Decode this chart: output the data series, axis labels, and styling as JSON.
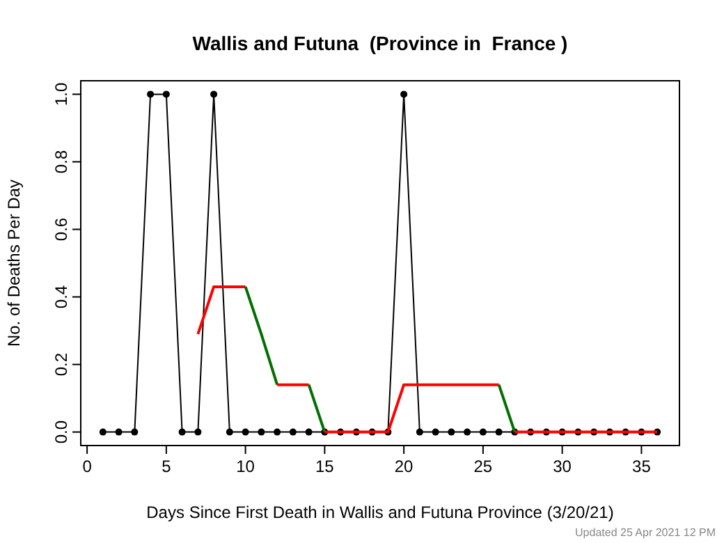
{
  "chart_data": {
    "type": "line",
    "title": "Wallis and Futuna  (Province in  France )",
    "xlabel": "Days Since First Death in Wallis and Futuna Province (3/20/21)",
    "ylabel": "No. of Deaths Per Day",
    "x": [
      1,
      2,
      3,
      4,
      5,
      6,
      7,
      8,
      9,
      10,
      11,
      12,
      13,
      14,
      15,
      16,
      17,
      18,
      19,
      20,
      21,
      22,
      23,
      24,
      25,
      26,
      27,
      28,
      29,
      30,
      31,
      32,
      33,
      34,
      35,
      36
    ],
    "series": [
      {
        "color": "#000000",
        "marker": "circle",
        "values": [
          0,
          0,
          0,
          1,
          1,
          0,
          0,
          1,
          0,
          0,
          0,
          0,
          0,
          0,
          0,
          0,
          0,
          0,
          0,
          1,
          0,
          0,
          0,
          0,
          0,
          0,
          0,
          0,
          0,
          0,
          0,
          0,
          0,
          0,
          0,
          0
        ]
      },
      {
        "color": "#ff0000",
        "marker": "none",
        "x": [
          7,
          8,
          9,
          10
        ],
        "values": [
          0.29,
          0.43,
          0.43,
          0.43
        ]
      },
      {
        "color": "#007000",
        "marker": "none",
        "x": [
          10,
          11,
          12
        ],
        "values": [
          0.43,
          0.29,
          0.14
        ]
      },
      {
        "color": "#ff0000",
        "marker": "none",
        "x": [
          12,
          13,
          14
        ],
        "values": [
          0.14,
          0.14,
          0.14
        ]
      },
      {
        "color": "#007000",
        "marker": "none",
        "x": [
          14,
          15
        ],
        "values": [
          0.14,
          0
        ]
      },
      {
        "color": "#ff0000",
        "marker": "none",
        "x": [
          15,
          16,
          17,
          18,
          19,
          20,
          21,
          22,
          23,
          24,
          25,
          26
        ],
        "values": [
          0,
          0,
          0,
          0,
          0,
          0.14,
          0.14,
          0.14,
          0.14,
          0.14,
          0.14,
          0.14
        ]
      },
      {
        "color": "#007000",
        "marker": "none",
        "x": [
          26,
          27
        ],
        "values": [
          0.14,
          0
        ]
      },
      {
        "color": "#ff0000",
        "marker": "none",
        "x": [
          27,
          28,
          29,
          30,
          31,
          32,
          33,
          34,
          35,
          36
        ],
        "values": [
          0,
          0,
          0,
          0,
          0,
          0,
          0,
          0,
          0,
          0
        ]
      }
    ],
    "xlim": [
      -0.4,
      37.4
    ],
    "ylim": [
      -0.04,
      1.04
    ],
    "xticks": [
      0,
      5,
      10,
      15,
      20,
      25,
      30,
      35
    ],
    "yticks": [
      {
        "value": 0,
        "label": "0.0"
      },
      {
        "value": 0.2,
        "label": "0.2"
      },
      {
        "value": 0.4,
        "label": "0.4"
      },
      {
        "value": 0.6,
        "label": "0.6"
      },
      {
        "value": 0.8,
        "label": "0.8"
      },
      {
        "value": 1,
        "label": "1.0"
      }
    ],
    "annotations": [
      "Updated  25 Apr 2021 12 PM"
    ]
  }
}
